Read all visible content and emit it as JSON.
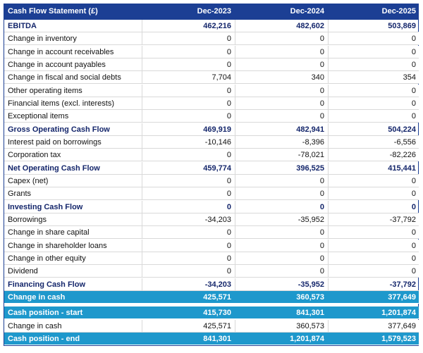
{
  "table": {
    "header": [
      "Cash Flow Statement (£)",
      "Dec-2023",
      "Dec-2024",
      "Dec-2025"
    ],
    "rows": [
      [
        "EBITDA",
        "462,216",
        "482,602",
        "503,869"
      ],
      [
        "Change in inventory",
        "0",
        "0",
        "0"
      ],
      [
        "Change in account receivables",
        "0",
        "0",
        "0"
      ],
      [
        "Change in account payables",
        "0",
        "0",
        "0"
      ],
      [
        "Change in fiscal and social debts",
        "7,704",
        "340",
        "354"
      ],
      [
        "Other operating items",
        "0",
        "0",
        "0"
      ],
      [
        "Financial items (excl. interests)",
        "0",
        "0",
        "0"
      ],
      [
        "Exceptional items",
        "0",
        "0",
        "0"
      ],
      [
        "Gross Operating Cash Flow",
        "469,919",
        "482,941",
        "504,224"
      ],
      [
        "Interest paid on borrowings",
        "-10,146",
        "-8,396",
        "-6,556"
      ],
      [
        "Corporation tax",
        "0",
        "-78,021",
        "-82,226"
      ],
      [
        "Net Operating Cash Flow",
        "459,774",
        "396,525",
        "415,441"
      ],
      [
        "Capex (net)",
        "0",
        "0",
        "0"
      ],
      [
        "Grants",
        "0",
        "0",
        "0"
      ],
      [
        "Investing Cash Flow",
        "0",
        "0",
        "0"
      ],
      [
        "Borrowings",
        "-34,203",
        "-35,952",
        "-37,792"
      ],
      [
        "Change in share capital",
        "0",
        "0",
        "0"
      ],
      [
        "Change in shareholder loans",
        "0",
        "0",
        "0"
      ],
      [
        "Change in other equity",
        "0",
        "0",
        "0"
      ],
      [
        "Dividend",
        "0",
        "0",
        "0"
      ],
      [
        "Financing Cash Flow",
        "-34,203",
        "-35,952",
        "-37,792"
      ],
      [
        "Change in cash",
        "425,571",
        "360,573",
        "377,649"
      ]
    ],
    "summary_rows": [
      [
        "Cash position - start",
        "415,730",
        "841,301",
        "1,201,874"
      ],
      [
        "Change in cash",
        "425,571",
        "360,573",
        "377,649"
      ],
      [
        "Cash position - end",
        "841,301",
        "1,201,874",
        "1,579,523"
      ]
    ]
  }
}
